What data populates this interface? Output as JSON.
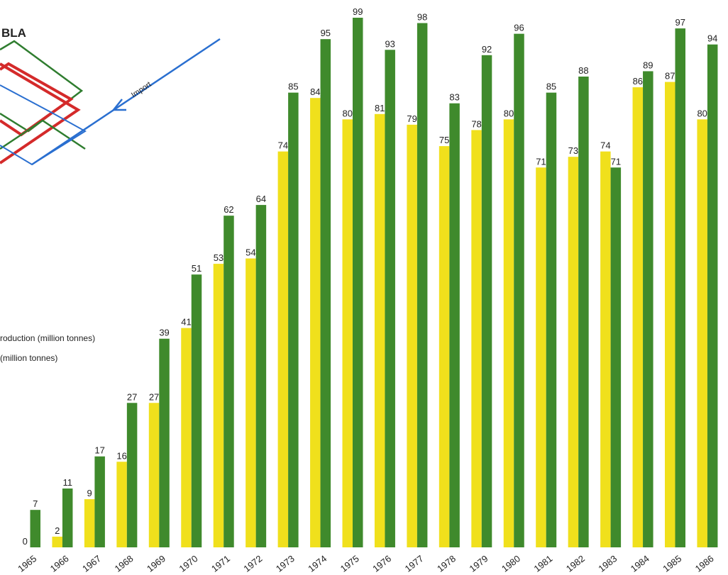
{
  "chart_data": {
    "type": "bar",
    "title": "BLA",
    "annotation": "Import",
    "categories": [
      "1965",
      "1966",
      "1967",
      "1968",
      "1969",
      "1970",
      "1971",
      "1972",
      "1973",
      "1974",
      "1975",
      "1976",
      "1977",
      "1978",
      "1979",
      "1980",
      "1981",
      "1982",
      "1983",
      "1984",
      "1985",
      "1986"
    ],
    "series": [
      {
        "name": "roduction (million tonnes)",
        "color": "#f0e01c",
        "values": [
          0,
          2,
          9,
          16,
          27,
          41,
          53,
          54,
          74,
          84,
          80,
          81,
          79,
          75,
          78,
          80,
          71,
          73,
          74,
          86,
          87,
          80
        ]
      },
      {
        "name": "(million tonnes)",
        "color": "#3f8a2c",
        "values": [
          7,
          11,
          17,
          27,
          39,
          51,
          62,
          64,
          85,
          95,
          99,
          93,
          98,
          83,
          92,
          96,
          85,
          88,
          71,
          89,
          97,
          94
        ]
      }
    ]
  }
}
